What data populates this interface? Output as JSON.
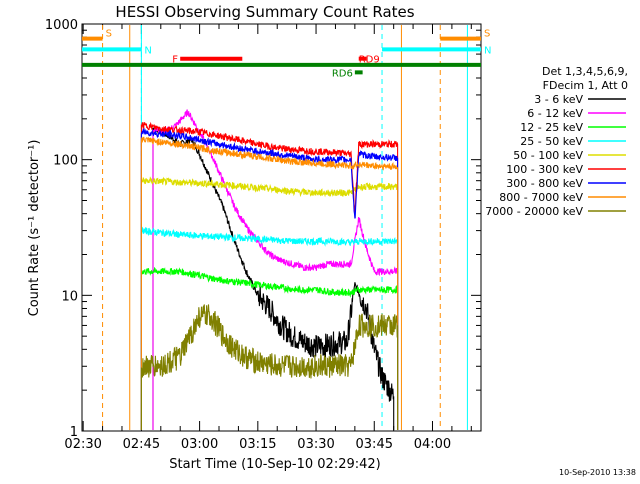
{
  "chart_data": {
    "type": "line",
    "title": "HESSI Observing Summary Count Rates",
    "xlabel": "Start Time (10-Sep-10 02:29:42)",
    "ylabel": "Count Rate (s⁻¹ detector⁻¹)",
    "yscale": "log",
    "ylim": [
      1,
      1000
    ],
    "xlim": [
      "02:29:42",
      "04:12:30"
    ],
    "x_ticks": [
      "02:30",
      "02:45",
      "03:00",
      "03:15",
      "03:30",
      "03:45",
      "04:00"
    ],
    "y_ticks": [
      "1",
      "10",
      "100",
      "1000"
    ],
    "legend": {
      "position": "right",
      "header": [
        "Det 1,3,4,5,6,9,",
        "FDecim 1, Att 0"
      ]
    },
    "series": [
      {
        "name": "3 - 6 keV",
        "color": "#000000",
        "points": [
          [
            "02:48",
            170
          ],
          [
            "02:52",
            150
          ],
          [
            "02:55",
            130
          ],
          [
            "02:58",
            140
          ],
          [
            "03:00",
            110
          ],
          [
            "03:03",
            70
          ],
          [
            "03:06",
            45
          ],
          [
            "03:09",
            25
          ],
          [
            "03:12",
            15
          ],
          [
            "03:15",
            10
          ],
          [
            "03:18",
            8
          ],
          [
            "03:21",
            6
          ],
          [
            "03:24",
            5
          ],
          [
            "03:27",
            4.5
          ],
          [
            "03:30",
            4.2
          ],
          [
            "03:33",
            4.3
          ],
          [
            "03:36",
            4.5
          ],
          [
            "03:38",
            4.5
          ],
          [
            "03:40",
            12
          ],
          [
            "03:43",
            8
          ],
          [
            "03:45",
            4
          ],
          [
            "03:47",
            2.5
          ],
          [
            "03:49",
            2
          ],
          [
            "03:50",
            1.8
          ]
        ]
      },
      {
        "name": "6 - 12 keV",
        "color": "#ff00ff",
        "points": [
          [
            "02:48",
            170
          ],
          [
            "02:51",
            160
          ],
          [
            "02:54",
            180
          ],
          [
            "02:57",
            225
          ],
          [
            "03:00",
            160
          ],
          [
            "03:03",
            110
          ],
          [
            "03:06",
            70
          ],
          [
            "03:09",
            45
          ],
          [
            "03:12",
            32
          ],
          [
            "03:15",
            25
          ],
          [
            "03:18",
            20
          ],
          [
            "03:21",
            18
          ],
          [
            "03:24",
            17
          ],
          [
            "03:27",
            16
          ],
          [
            "03:30",
            16
          ],
          [
            "03:33",
            17
          ],
          [
            "03:36",
            17
          ],
          [
            "03:39",
            17
          ],
          [
            "03:41",
            37
          ],
          [
            "03:43",
            22
          ],
          [
            "03:45",
            15
          ],
          [
            "03:47",
            15
          ],
          [
            "03:49",
            15
          ],
          [
            "03:51",
            15
          ]
        ]
      },
      {
        "name": "12 - 25 keV",
        "color": "#00ff00",
        "points": [
          [
            "02:45",
            15
          ],
          [
            "02:50",
            15
          ],
          [
            "02:55",
            15
          ],
          [
            "03:00",
            14
          ],
          [
            "03:05",
            13
          ],
          [
            "03:10",
            12.5
          ],
          [
            "03:15",
            12
          ],
          [
            "03:20",
            11.5
          ],
          [
            "03:25",
            11
          ],
          [
            "03:30",
            11
          ],
          [
            "03:35",
            10.5
          ],
          [
            "03:39",
            10.5
          ],
          [
            "03:41",
            11
          ],
          [
            "03:45",
            11
          ],
          [
            "03:51",
            11
          ]
        ]
      },
      {
        "name": "25 - 50 keV",
        "color": "#00ffff",
        "points": [
          [
            "02:45",
            30
          ],
          [
            "02:50",
            29
          ],
          [
            "02:55",
            28
          ],
          [
            "03:00",
            27.5
          ],
          [
            "03:05",
            27
          ],
          [
            "03:10",
            26.5
          ],
          [
            "03:15",
            26
          ],
          [
            "03:20",
            25.5
          ],
          [
            "03:25",
            25
          ],
          [
            "03:30",
            25
          ],
          [
            "03:35",
            25
          ],
          [
            "03:39",
            24.5
          ],
          [
            "03:41",
            25
          ],
          [
            "03:45",
            25
          ],
          [
            "03:51",
            25
          ]
        ]
      },
      {
        "name": "50 - 100 keV",
        "color": "#dddd00",
        "points": [
          [
            "02:45",
            70
          ],
          [
            "02:50",
            69
          ],
          [
            "02:55",
            68
          ],
          [
            "03:00",
            67
          ],
          [
            "03:05",
            66
          ],
          [
            "03:10",
            64
          ],
          [
            "03:15",
            62
          ],
          [
            "03:20",
            60
          ],
          [
            "03:25",
            58
          ],
          [
            "03:30",
            57
          ],
          [
            "03:35",
            57
          ],
          [
            "03:39",
            57
          ],
          [
            "03:41",
            63
          ],
          [
            "03:45",
            63
          ],
          [
            "03:51",
            63
          ]
        ]
      },
      {
        "name": "100 - 300 keV",
        "color": "#ff0000",
        "points": [
          [
            "02:45",
            180
          ],
          [
            "02:50",
            170
          ],
          [
            "02:55",
            165
          ],
          [
            "03:00",
            160
          ],
          [
            "03:05",
            150
          ],
          [
            "03:10",
            140
          ],
          [
            "03:15",
            130
          ],
          [
            "03:20",
            122
          ],
          [
            "03:25",
            118
          ],
          [
            "03:30",
            115
          ],
          [
            "03:35",
            113
          ],
          [
            "03:39",
            110
          ],
          [
            "03:40",
            40
          ],
          [
            "03:41",
            130
          ],
          [
            "03:45",
            130
          ],
          [
            "03:51",
            130
          ]
        ]
      },
      {
        "name": "300 - 800 keV",
        "color": "#0000ff",
        "points": [
          [
            "02:45",
            160
          ],
          [
            "02:50",
            155
          ],
          [
            "02:55",
            150
          ],
          [
            "03:00",
            140
          ],
          [
            "03:05",
            130
          ],
          [
            "03:10",
            122
          ],
          [
            "03:15",
            115
          ],
          [
            "03:20",
            110
          ],
          [
            "03:25",
            105
          ],
          [
            "03:30",
            100
          ],
          [
            "03:35",
            100
          ],
          [
            "03:39",
            100
          ],
          [
            "03:40",
            35
          ],
          [
            "03:41",
            110
          ],
          [
            "03:45",
            105
          ],
          [
            "03:51",
            103
          ]
        ]
      },
      {
        "name": "800 - 7000 keV",
        "color": "#ff8c00",
        "points": [
          [
            "02:45",
            140
          ],
          [
            "02:50",
            135
          ],
          [
            "02:55",
            130
          ],
          [
            "03:00",
            122
          ],
          [
            "03:05",
            115
          ],
          [
            "03:10",
            110
          ],
          [
            "03:15",
            105
          ],
          [
            "03:20",
            100
          ],
          [
            "03:25",
            96
          ],
          [
            "03:30",
            94
          ],
          [
            "03:35",
            92
          ],
          [
            "03:39",
            90
          ],
          [
            "03:41",
            92
          ],
          [
            "03:45",
            90
          ],
          [
            "03:51",
            88
          ]
        ]
      },
      {
        "name": "7000 - 20000 keV",
        "color": "#808000",
        "points": [
          [
            "02:45",
            3
          ],
          [
            "02:50",
            3
          ],
          [
            "02:55",
            3.5
          ],
          [
            "03:00",
            7
          ],
          [
            "03:03",
            7
          ],
          [
            "03:06",
            5
          ],
          [
            "03:09",
            4
          ],
          [
            "03:12",
            3.5
          ],
          [
            "03:15",
            3.2
          ],
          [
            "03:20",
            3
          ],
          [
            "03:25",
            3
          ],
          [
            "03:30",
            3
          ],
          [
            "03:35",
            3
          ],
          [
            "03:39",
            3
          ],
          [
            "03:41",
            6
          ],
          [
            "03:45",
            6
          ],
          [
            "03:51",
            6
          ]
        ]
      }
    ],
    "annotations": [
      {
        "label": "S",
        "color": "#ff8c00",
        "range": [
          "02:29:42",
          "02:35"
        ],
        "level": 780,
        "kind": "flag"
      },
      {
        "label": "S",
        "color": "#ff8c00",
        "range": [
          "04:02",
          "04:12:30"
        ],
        "level": 780,
        "kind": "flag"
      },
      {
        "label": "N",
        "color": "#00ffff",
        "range": [
          "02:29:42",
          "02:45"
        ],
        "level": 650,
        "kind": "flag"
      },
      {
        "label": "N",
        "color": "#00ffff",
        "range": [
          "03:47",
          "04:12:30"
        ],
        "level": 650,
        "kind": "flag"
      },
      {
        "label": "F",
        "color": "#ff0000",
        "range": [
          "02:55",
          "03:11"
        ],
        "level": 555,
        "kind": "flag"
      },
      {
        "label": "RD9",
        "color": "#ff0000",
        "range": [
          "03:41",
          "03:43"
        ],
        "level": 555,
        "kind": "flag"
      },
      {
        "label": "",
        "color": "#008000",
        "range": [
          "02:29:42",
          "04:12:30"
        ],
        "level": 500,
        "kind": "flag"
      },
      {
        "label": "RD6",
        "color": "#008000",
        "range": [
          "03:40",
          "03:42"
        ],
        "level": 440,
        "kind": "flag"
      },
      {
        "label": "",
        "color": "#ff8c00",
        "time": "02:35",
        "kind": "vline"
      },
      {
        "label": "",
        "color": "#00ffff",
        "time": "02:45",
        "kind": "vline"
      },
      {
        "label": "",
        "color": "#00ffff",
        "time": "03:47",
        "kind": "vline"
      },
      {
        "label": "",
        "color": "#ff8c00",
        "time": "04:02",
        "kind": "vline"
      },
      {
        "label": "",
        "color": "#ff8c00",
        "time": "02:42",
        "kind": "vline-solid"
      },
      {
        "label": "",
        "color": "#ff8c00",
        "time": "03:52",
        "kind": "vline-solid"
      },
      {
        "label": "",
        "color": "#00ffff",
        "time": "04:09",
        "kind": "vline-solid"
      },
      {
        "label": "",
        "color": "#00ffff",
        "time": "02:45",
        "kind": "vline-solid"
      }
    ],
    "timestamp": "10-Sep-2010 13:38"
  }
}
